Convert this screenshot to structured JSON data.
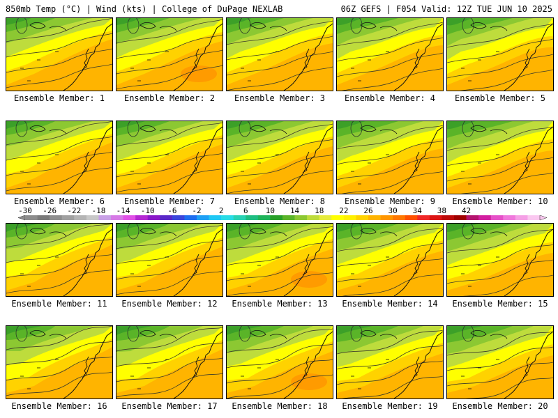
{
  "header": {
    "left": "850mb Temp (°C) | Wind (kts) | College of DuPage NEXLAB",
    "right": "06Z GEFS | F054 Valid: 12Z TUE JUN 10 2025"
  },
  "colorbar": {
    "tick_labels": [
      "-30",
      "-26",
      "-22",
      "-18",
      "-14",
      "-10",
      "-6",
      "-2",
      "2",
      "6",
      "10",
      "14",
      "18",
      "22",
      "26",
      "30",
      "34",
      "38",
      "42"
    ],
    "colors": [
      "#8c8c8c",
      "#7a7a7a",
      "#8e8e8e",
      "#a0a0a0",
      "#b4b4b4",
      "#c8c8c8",
      "#c8a0e6",
      "#d67ae6",
      "#e050e6",
      "#b428d2",
      "#8a18c8",
      "#5a28c8",
      "#3c46dc",
      "#1e6ef0",
      "#1ea0f5",
      "#1ec8f5",
      "#28dce6",
      "#28d2b4",
      "#1ebe82",
      "#1eb45a",
      "#28a028",
      "#5ab428",
      "#8cc832",
      "#bedc3c",
      "#e6eb3c",
      "#ffff00",
      "#fff000",
      "#ffd200",
      "#ffb400",
      "#ff9600",
      "#ff7800",
      "#ff5000",
      "#f02828",
      "#dc1414",
      "#be0a0a",
      "#a00000",
      "#b4146e",
      "#d21ea0",
      "#e650c8",
      "#f078dc",
      "#f5a0e6",
      "#fac8f0"
    ]
  },
  "members": [
    {
      "label": "Ensemble Member: 1"
    },
    {
      "label": "Ensemble Member: 2"
    },
    {
      "label": "Ensemble Member: 3"
    },
    {
      "label": "Ensemble Member: 4"
    },
    {
      "label": "Ensemble Member: 5"
    },
    {
      "label": "Ensemble Member: 6"
    },
    {
      "label": "Ensemble Member: 7"
    },
    {
      "label": "Ensemble Member: 8"
    },
    {
      "label": "Ensemble Member: 9"
    },
    {
      "label": "Ensemble Member: 10"
    },
    {
      "label": "Ensemble Member: 11"
    },
    {
      "label": "Ensemble Member: 12"
    },
    {
      "label": "Ensemble Member: 13"
    },
    {
      "label": "Ensemble Member: 14"
    },
    {
      "label": "Ensemble Member: 15"
    },
    {
      "label": "Ensemble Member: 16"
    },
    {
      "label": "Ensemble Member: 17"
    },
    {
      "label": "Ensemble Member: 18"
    },
    {
      "label": "Ensemble Member: 19"
    },
    {
      "label": "Ensemble Member: 20"
    }
  ]
}
